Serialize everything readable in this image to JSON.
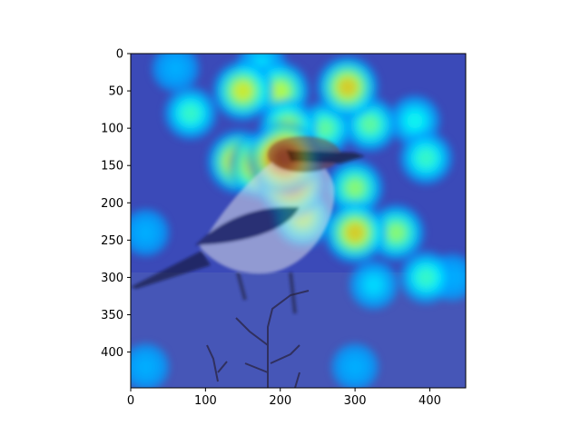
{
  "chart_data": {
    "type": "heatmap",
    "title": "",
    "xlabel": "",
    "ylabel": "",
    "xlim": [
      0,
      448
    ],
    "ylim": [
      448,
      0
    ],
    "x_ticks": [
      0,
      100,
      200,
      300,
      400
    ],
    "y_ticks": [
      0,
      50,
      100,
      150,
      200,
      250,
      300,
      350,
      400
    ],
    "colormap": "jet",
    "grid": false,
    "overlay_subject": "bird perched on a branch",
    "hotspots": [
      {
        "x": 205,
        "y": 140,
        "intensity": 1.0
      },
      {
        "x": 175,
        "y": 150,
        "intensity": 0.8
      },
      {
        "x": 215,
        "y": 175,
        "intensity": 0.85
      },
      {
        "x": 145,
        "y": 145,
        "intensity": 0.75
      },
      {
        "x": 150,
        "y": 50,
        "intensity": 0.65
      },
      {
        "x": 200,
        "y": 50,
        "intensity": 0.6
      },
      {
        "x": 290,
        "y": 45,
        "intensity": 0.7
      },
      {
        "x": 300,
        "y": 240,
        "intensity": 0.7
      },
      {
        "x": 355,
        "y": 240,
        "intensity": 0.55
      },
      {
        "x": 300,
        "y": 180,
        "intensity": 0.55
      },
      {
        "x": 320,
        "y": 95,
        "intensity": 0.5
      },
      {
        "x": 80,
        "y": 80,
        "intensity": 0.45
      },
      {
        "x": 210,
        "y": 100,
        "intensity": 0.6
      },
      {
        "x": 260,
        "y": 100,
        "intensity": 0.5
      },
      {
        "x": 230,
        "y": 220,
        "intensity": 0.6
      },
      {
        "x": 395,
        "y": 140,
        "intensity": 0.45
      },
      {
        "x": 380,
        "y": 90,
        "intensity": 0.4
      },
      {
        "x": 395,
        "y": 300,
        "intensity": 0.45
      },
      {
        "x": 325,
        "y": 310,
        "intensity": 0.35
      },
      {
        "x": 175,
        "y": 15,
        "intensity": 0.35
      },
      {
        "x": 60,
        "y": 20,
        "intensity": 0.3
      },
      {
        "x": 20,
        "y": 240,
        "intensity": 0.3
      },
      {
        "x": 430,
        "y": 300,
        "intensity": 0.3
      },
      {
        "x": 20,
        "y": 420,
        "intensity": 0.3
      },
      {
        "x": 300,
        "y": 420,
        "intensity": 0.3
      }
    ]
  }
}
